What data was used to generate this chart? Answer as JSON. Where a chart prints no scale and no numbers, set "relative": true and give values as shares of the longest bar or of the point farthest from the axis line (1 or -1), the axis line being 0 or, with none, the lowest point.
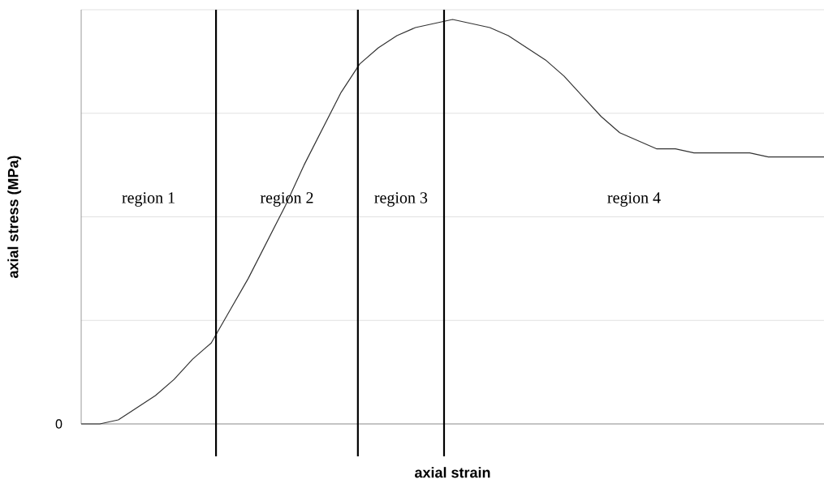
{
  "chart_data": {
    "type": "line",
    "relative": true,
    "xlabel": "axial strain",
    "ylabel": "axial stress (MPa)",
    "categories": [
      null,
      null,
      null,
      null,
      null,
      null,
      null,
      null,
      null,
      null,
      null,
      null,
      null,
      null,
      null,
      null,
      null,
      null,
      null,
      null,
      null,
      null,
      null,
      null,
      null,
      null,
      null,
      null,
      null,
      null,
      null,
      null,
      null,
      null,
      null,
      null,
      null,
      null,
      null,
      null,
      null
    ],
    "values": [
      0,
      0,
      0.01,
      0.04,
      0.07,
      0.11,
      0.16,
      0.2,
      0.28,
      0.36,
      0.45,
      0.54,
      0.64,
      0.73,
      0.82,
      0.89,
      0.93,
      0.96,
      0.98,
      0.99,
      1.0,
      0.99,
      0.98,
      0.96,
      0.93,
      0.9,
      0.86,
      0.81,
      0.76,
      0.72,
      0.7,
      0.68,
      0.68,
      0.67,
      0.67,
      0.67,
      0.67,
      0.66,
      0.66,
      0.66,
      0.66
    ],
    "color": "#333333",
    "marker": "none",
    "line_style": "solid",
    "grid": "y",
    "annotations": [
      "region 1",
      "region  2",
      "region 3",
      "region 4",
      "0"
    ]
  }
}
